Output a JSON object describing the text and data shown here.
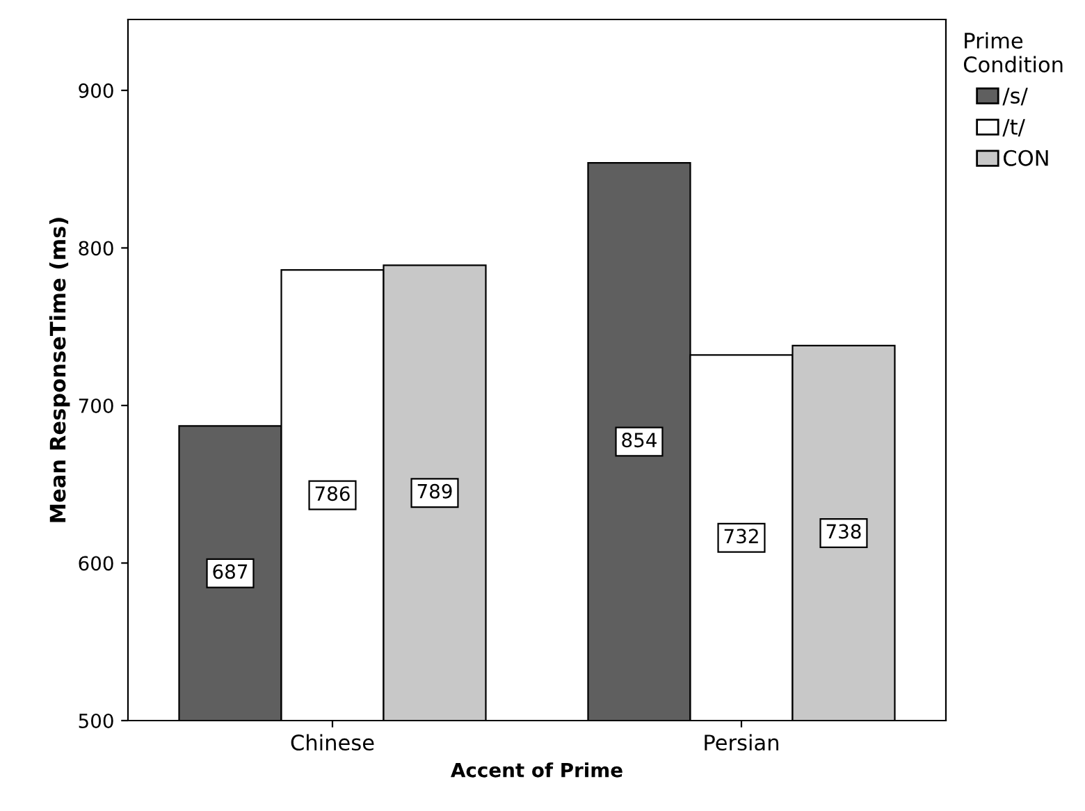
{
  "chart_data": {
    "type": "bar",
    "xlabel": "Accent of Prime",
    "ylabel": "Mean ResponseTime (ms)",
    "legend_title": "Prime\nCondition",
    "categories": [
      "Chinese",
      "Persian"
    ],
    "series": [
      {
        "name": "/s/",
        "color": "#5f5f5f",
        "values": [
          687,
          854
        ]
      },
      {
        "name": "/t/",
        "color": "#ffffff",
        "values": [
          786,
          732
        ]
      },
      {
        "name": "CON",
        "color": "#c8c8c8",
        "values": [
          789,
          738
        ]
      }
    ],
    "ylim": [
      500,
      945
    ],
    "yticks": [
      500,
      600,
      700,
      800,
      900
    ],
    "grid": false,
    "legend": "right",
    "data_labels": true
  }
}
